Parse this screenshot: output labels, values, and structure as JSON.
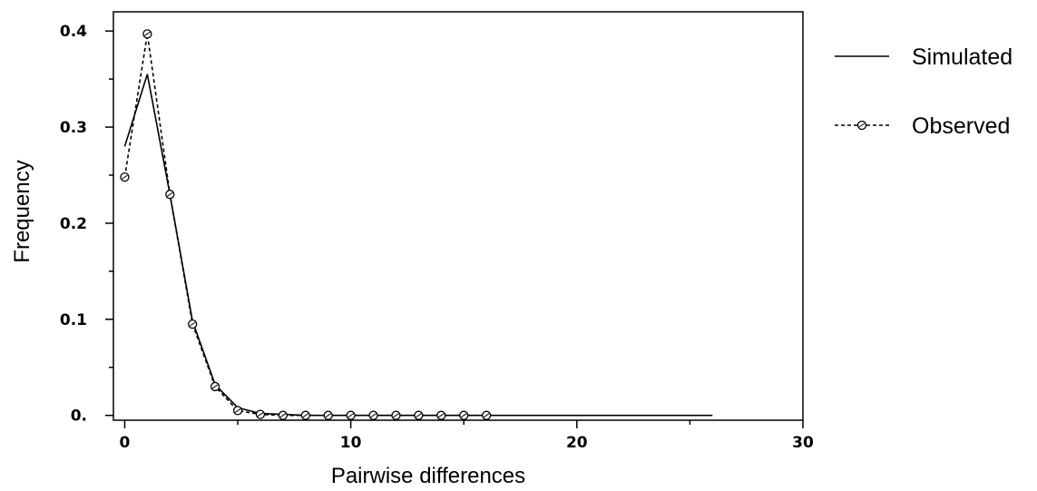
{
  "chart_data": {
    "type": "line",
    "title": "",
    "xlabel": "Pairwise differences",
    "ylabel": "Frequency",
    "xlim": [
      -0.5,
      30
    ],
    "ylim": [
      -0.005,
      0.42
    ],
    "x_ticks": [
      0,
      10,
      20,
      30
    ],
    "x_tick_labels": [
      "0",
      "10",
      "20",
      "30"
    ],
    "x_minor_ticks": [
      5,
      15,
      25
    ],
    "y_ticks": [
      0,
      0.1,
      0.2,
      0.3,
      0.4
    ],
    "y_tick_labels": [
      "0.",
      "0.1",
      "0.2",
      "0.3",
      "0.4"
    ],
    "y_minor_ticks": [
      0.05,
      0.15,
      0.25,
      0.35
    ],
    "grid": false,
    "legend_position": "outside-right",
    "series": [
      {
        "name": "Simulated",
        "style": "solid",
        "marker": "none",
        "color": "#000000",
        "x": [
          0,
          1,
          2,
          3,
          4,
          5,
          6,
          7,
          8,
          9,
          10,
          11,
          12,
          13,
          14,
          15,
          16,
          17,
          18,
          19,
          20,
          21,
          22,
          23,
          24,
          25,
          26
        ],
        "values": [
          0.28,
          0.355,
          0.23,
          0.098,
          0.032,
          0.008,
          0.002,
          0.001,
          0,
          0,
          0,
          0,
          0,
          0,
          0,
          0,
          0,
          0,
          0,
          0,
          0,
          0,
          0,
          0,
          0,
          0,
          0
        ]
      },
      {
        "name": "Observed",
        "style": "dashed",
        "marker": "circle",
        "color": "#000000",
        "x": [
          0,
          1,
          2,
          3,
          4,
          5,
          6,
          7,
          8,
          9,
          10,
          11,
          12,
          13,
          14,
          15,
          16
        ],
        "values": [
          0.248,
          0.397,
          0.23,
          0.095,
          0.03,
          0.005,
          0.001,
          0,
          0,
          0,
          0,
          0,
          0,
          0,
          0,
          0,
          0
        ]
      }
    ]
  }
}
